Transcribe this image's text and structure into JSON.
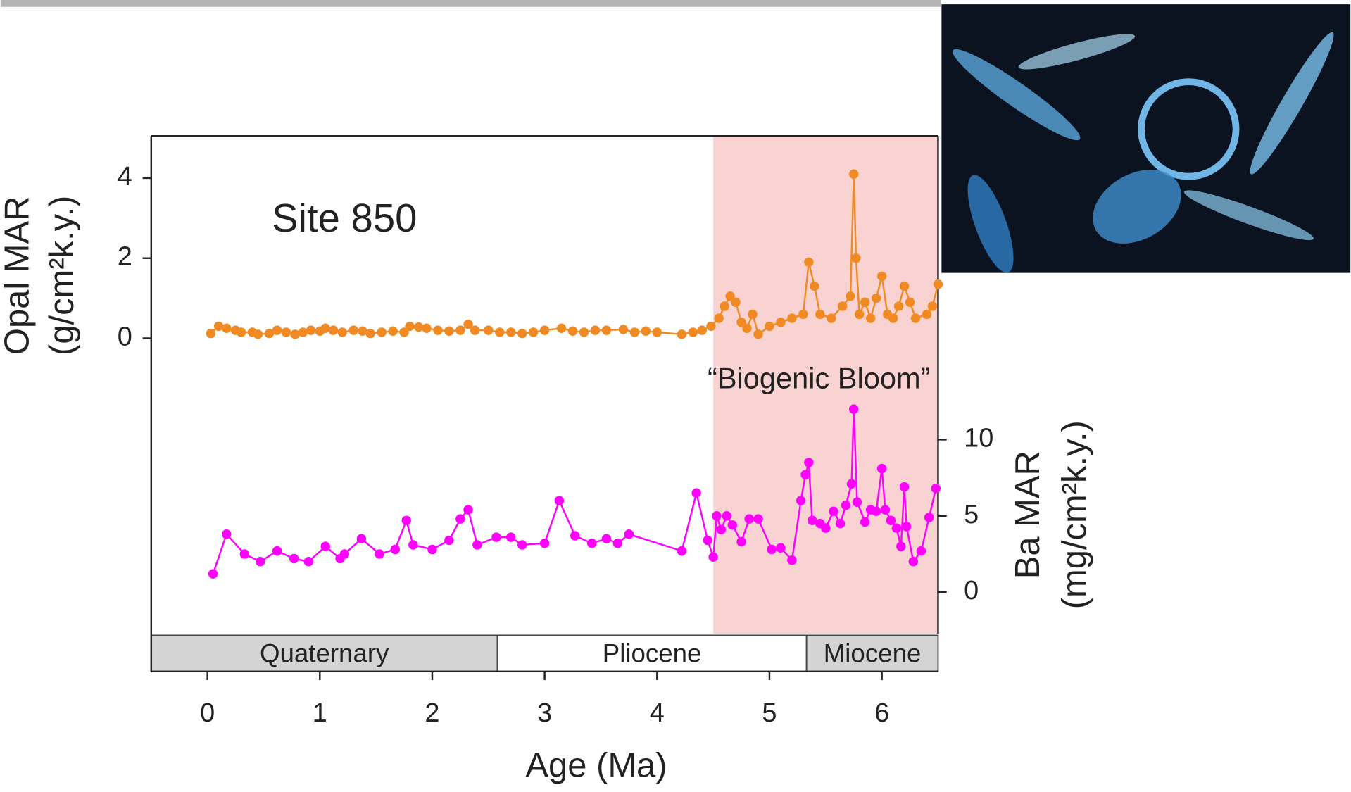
{
  "chart_data": {
    "type": "line",
    "annotations": [
      "Site 850",
      "“Biogenic Bloom”"
    ],
    "xlabel": "Age (Ma)",
    "ylabel": [
      "Opal MAR",
      "(g/cm²k.y.)"
    ],
    "y2label": [
      "Ba MAR",
      "(mg/cm²k.y.)"
    ],
    "xlim": [
      -0.5,
      6.5
    ],
    "xticks": [
      0,
      1,
      2,
      3,
      4,
      5,
      6
    ],
    "ylim": [
      -8.32,
      5.05
    ],
    "yticks": [
      0,
      2,
      4
    ],
    "y2lim": [
      -5.2,
      29.9
    ],
    "y2ticks": [
      0,
      5,
      10
    ],
    "bloom_range": [
      4.5,
      6.5
    ],
    "epochs": [
      {
        "label": "Quaternary",
        "range": [
          -0.5,
          2.58
        ]
      },
      {
        "label": "Pliocene",
        "range": [
          2.58,
          5.33
        ]
      },
      {
        "label": "Miocene",
        "range": [
          5.33,
          6.5
        ]
      }
    ],
    "series": [
      {
        "color": "#f08a24",
        "x": [
          0.03,
          0.1,
          0.17,
          0.25,
          0.3,
          0.4,
          0.45,
          0.55,
          0.62,
          0.7,
          0.78,
          0.85,
          0.92,
          1.0,
          1.05,
          1.12,
          1.2,
          1.3,
          1.38,
          1.45,
          1.55,
          1.65,
          1.75,
          1.8,
          1.88,
          1.95,
          2.05,
          2.15,
          2.25,
          2.32,
          2.38,
          2.5,
          2.6,
          2.7,
          2.8,
          2.9,
          3.0,
          3.15,
          3.25,
          3.35,
          3.45,
          3.55,
          3.7,
          3.8,
          3.9,
          4.0,
          4.22,
          4.32,
          4.4,
          4.48,
          4.55,
          4.6,
          4.65,
          4.7,
          4.75,
          4.8,
          4.85,
          4.9,
          5.0,
          5.1,
          5.2,
          5.3,
          5.35,
          5.4,
          5.45,
          5.55,
          5.65,
          5.72,
          5.75,
          5.77,
          5.8,
          5.85,
          5.9,
          5.95,
          6.0,
          6.05,
          6.1,
          6.15,
          6.2,
          6.25,
          6.3,
          6.4,
          6.45,
          6.5
        ],
        "values": [
          0.12,
          0.3,
          0.25,
          0.2,
          0.15,
          0.15,
          0.1,
          0.12,
          0.2,
          0.15,
          0.1,
          0.15,
          0.2,
          0.18,
          0.25,
          0.2,
          0.15,
          0.2,
          0.18,
          0.12,
          0.15,
          0.18,
          0.15,
          0.3,
          0.28,
          0.25,
          0.2,
          0.18,
          0.2,
          0.35,
          0.2,
          0.2,
          0.15,
          0.15,
          0.12,
          0.15,
          0.2,
          0.25,
          0.18,
          0.15,
          0.2,
          0.2,
          0.22,
          0.15,
          0.18,
          0.15,
          0.1,
          0.15,
          0.2,
          0.3,
          0.5,
          0.8,
          1.05,
          0.9,
          0.4,
          0.25,
          0.6,
          0.1,
          0.3,
          0.4,
          0.5,
          0.6,
          1.9,
          1.3,
          0.6,
          0.5,
          0.8,
          1.05,
          4.1,
          2.0,
          0.6,
          0.9,
          0.5,
          1.0,
          1.55,
          0.6,
          0.5,
          0.8,
          1.3,
          0.9,
          0.5,
          0.6,
          0.8,
          1.35
        ]
      },
      {
        "color": "#ff00ff",
        "axis": "y2",
        "x": [
          0.05,
          0.17,
          0.33,
          0.47,
          0.62,
          0.77,
          0.9,
          1.05,
          1.18,
          1.22,
          1.37,
          1.53,
          1.67,
          1.77,
          1.83,
          2.0,
          2.15,
          2.25,
          2.32,
          2.4,
          2.57,
          2.7,
          2.8,
          3.0,
          3.13,
          3.27,
          3.42,
          3.55,
          3.65,
          3.75,
          4.22,
          4.35,
          4.45,
          4.5,
          4.53,
          4.57,
          4.62,
          4.67,
          4.75,
          4.82,
          4.9,
          5.02,
          5.1,
          5.2,
          5.28,
          5.32,
          5.35,
          5.38,
          5.45,
          5.5,
          5.57,
          5.63,
          5.68,
          5.73,
          5.75,
          5.78,
          5.85,
          5.9,
          5.95,
          6.0,
          6.03,
          6.08,
          6.13,
          6.17,
          6.2,
          6.22,
          6.28,
          6.35,
          6.42,
          6.48
        ],
        "values": [
          1.2,
          3.8,
          2.5,
          2.0,
          2.7,
          2.2,
          2.0,
          3.0,
          2.2,
          2.5,
          3.5,
          2.5,
          2.8,
          4.7,
          3.1,
          2.8,
          3.4,
          4.8,
          5.4,
          3.1,
          3.6,
          3.6,
          3.1,
          3.2,
          6.0,
          3.7,
          3.2,
          3.5,
          3.2,
          3.8,
          2.7,
          6.5,
          3.4,
          2.3,
          5.0,
          4.1,
          5.0,
          4.4,
          3.3,
          4.8,
          4.8,
          2.8,
          2.9,
          2.1,
          6.0,
          7.7,
          8.5,
          4.7,
          4.5,
          4.2,
          5.3,
          4.5,
          5.7,
          7.1,
          12,
          5.9,
          4.6,
          5.4,
          5.3,
          8.1,
          5.4,
          4.7,
          4.2,
          3.0,
          6.9,
          4.3,
          2.0,
          2.7,
          4.9,
          6.8
        ]
      }
    ]
  }
}
